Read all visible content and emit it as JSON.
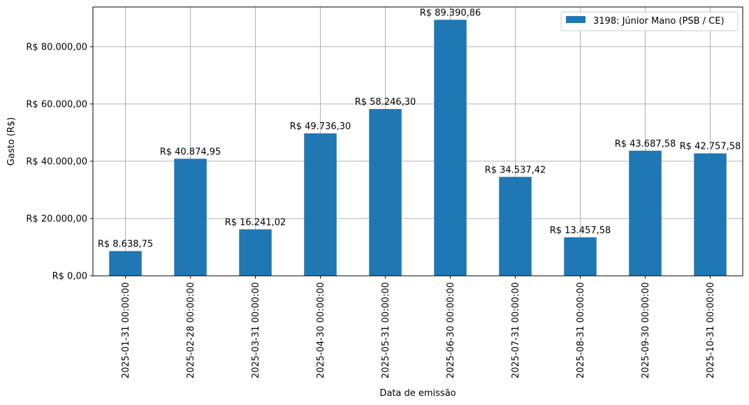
{
  "chart_data": {
    "type": "bar",
    "categories": [
      "2025-01-31 00:00:00",
      "2025-02-28 00:00:00",
      "2025-03-31 00:00:00",
      "2025-04-30 00:00:00",
      "2025-05-31 00:00:00",
      "2025-06-30 00:00:00",
      "2025-07-31 00:00:00",
      "2025-08-31 00:00:00",
      "2025-09-30 00:00:00",
      "2025-10-31 00:00:00"
    ],
    "series": [
      {
        "name": "3198: Júnior Mano (PSB / CE)",
        "color": "#1f77b4",
        "values": [
          8638.75,
          40874.95,
          16241.02,
          49736.3,
          58246.3,
          89390.86,
          34537.42,
          13457.58,
          43687.58,
          42757.58
        ],
        "value_labels": [
          "R$ 8.638,75",
          "R$ 40.874,95",
          "R$ 16.241,02",
          "R$ 49.736,30",
          "R$ 58.246,30",
          "R$ 89.390,86",
          "R$ 34.537,42",
          "R$ 13.457,58",
          "R$ 43.687,58",
          "R$ 42.757,58"
        ]
      }
    ],
    "title": "",
    "xlabel": "Data de emissão",
    "ylabel": "Gasto (R$)",
    "ylim": [
      0,
      93860.4
    ],
    "yticks": [
      0,
      20000,
      40000,
      60000,
      80000
    ],
    "ytick_labels": [
      "R$ 0,00",
      "R$ 20.000,00",
      "R$ 40.000,00",
      "R$ 60.000,00",
      "R$ 80.000,00"
    ],
    "grid": true,
    "legend": "upper-right"
  }
}
